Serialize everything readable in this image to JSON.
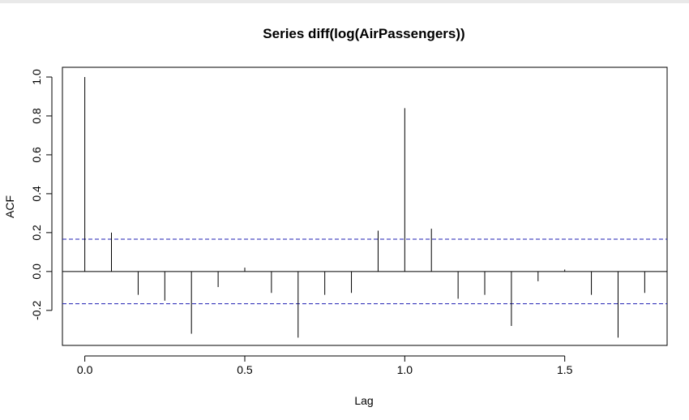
{
  "chart_data": {
    "type": "bar",
    "title": "Series  diff(log(AirPassengers))",
    "xlabel": "Lag",
    "ylabel": "ACF",
    "xlim": [
      -0.07,
      1.82
    ],
    "ylim": [
      -0.38,
      1.05
    ],
    "x_ticks": [
      "0.0",
      "0.5",
      "1.0",
      "1.5"
    ],
    "x_tick_values": [
      0.0,
      0.5,
      1.0,
      1.5
    ],
    "y_ticks": [
      "-0.2",
      "0.0",
      "0.2",
      "0.4",
      "0.6",
      "0.8",
      "1.0"
    ],
    "y_tick_values": [
      -0.2,
      0.0,
      0.2,
      0.4,
      0.6,
      0.8,
      1.0
    ],
    "lags": [
      0.0,
      0.0833,
      0.1667,
      0.25,
      0.3333,
      0.4167,
      0.5,
      0.5833,
      0.6667,
      0.75,
      0.8333,
      0.9167,
      1.0,
      1.0833,
      1.1667,
      1.25,
      1.3333,
      1.4167,
      1.5,
      1.5833,
      1.6667,
      1.75
    ],
    "values": [
      1.0,
      0.2,
      -0.12,
      -0.15,
      -0.32,
      -0.08,
      0.02,
      -0.11,
      -0.34,
      -0.12,
      -0.11,
      0.21,
      0.84,
      0.22,
      -0.14,
      -0.12,
      -0.28,
      -0.05,
      0.01,
      -0.12,
      -0.34,
      -0.11
    ],
    "confidence_bound": 0.166,
    "grid": false,
    "bar_color": "#000000",
    "bound_color": "#1f1fb3",
    "zero_line_color": "#000000"
  }
}
